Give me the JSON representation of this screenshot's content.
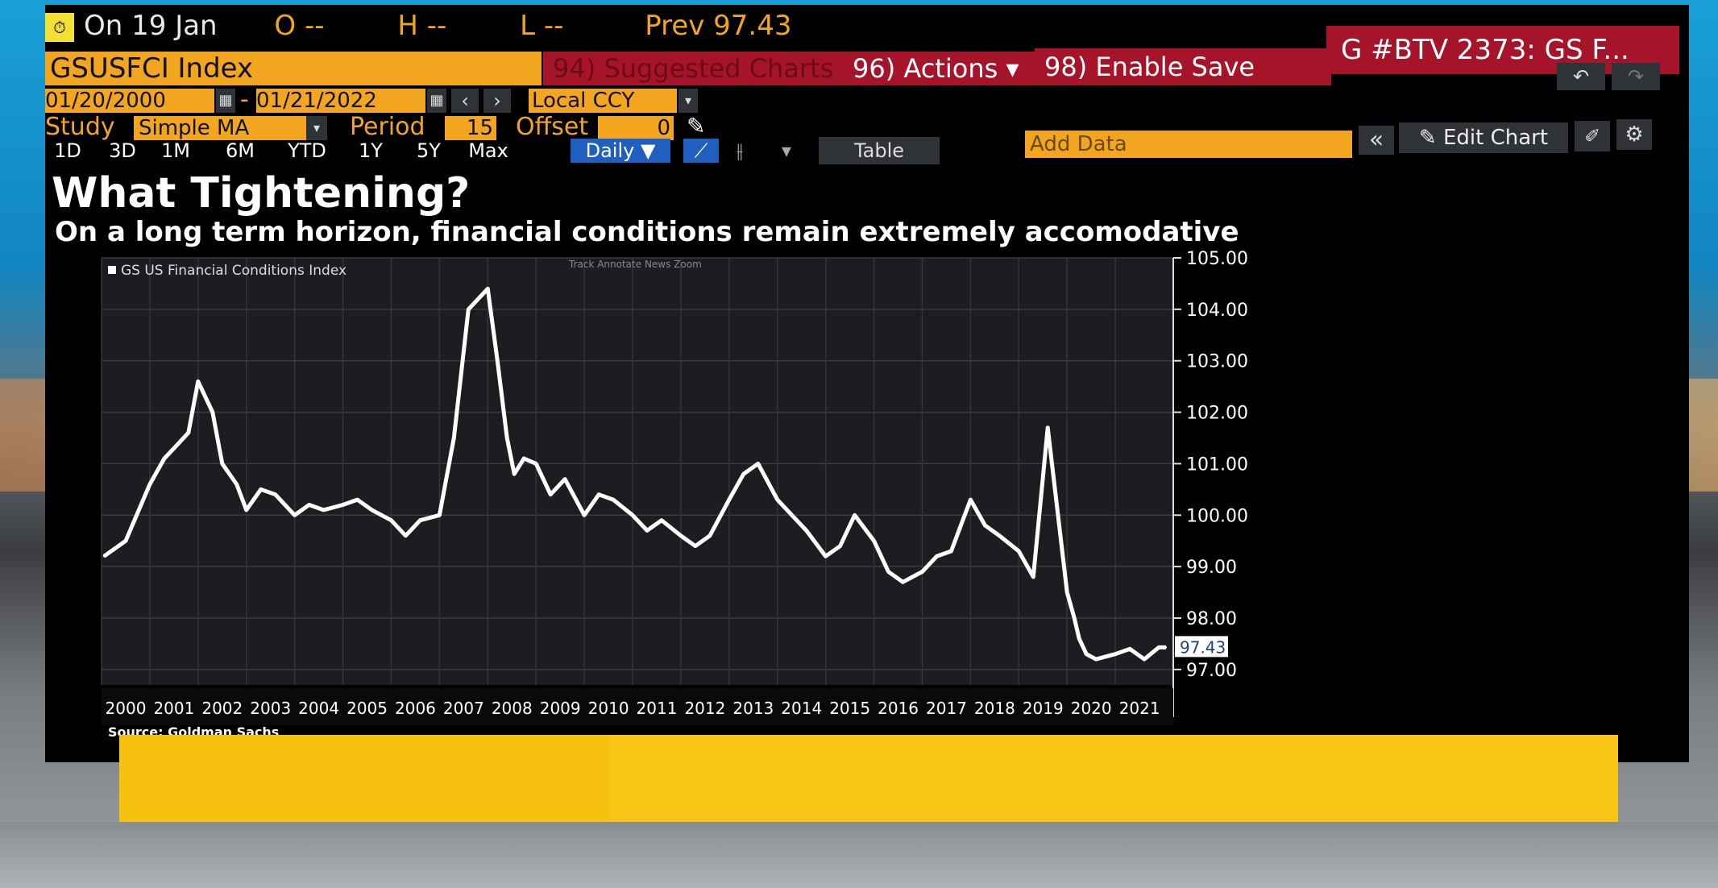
{
  "header": {
    "date_label": "On 19 Jan",
    "open": "O --",
    "high": "H --",
    "low": "L --",
    "prev": "Prev 97.43"
  },
  "security": {
    "ticker": "GSUSFCI Index",
    "suggested": "94) Suggested Charts",
    "actions": "96) Actions ▾",
    "enable_save": "98) Enable Save",
    "btv": "G #BTV 2373: GS F..."
  },
  "dates": {
    "start": "01/20/2000",
    "end": "01/21/2022",
    "currency": "Local CCY"
  },
  "study": {
    "label": "Study",
    "value": "Simple MA",
    "period_label": "Period",
    "period": "15",
    "offset_label": "Offset",
    "offset": "0"
  },
  "ranges": [
    "1D",
    "3D",
    "1M",
    "6M",
    "YTD",
    "1Y",
    "5Y",
    "Max"
  ],
  "frequency": "Daily ▼",
  "toolbar": {
    "table": "Table",
    "add_data": "Add Data",
    "edit_chart": "Edit Chart",
    "chevrons": "«"
  },
  "chart_title": "What Tightening?",
  "chart_subtitle": "On a long term horizon, financial conditions remain extremely accomodative",
  "chart_tools": "Track  Annotate  News  Zoom",
  "source": "Source: Goldman Sachs",
  "colors": {
    "accent": "#f2a51f",
    "red": "#a6142a",
    "blue": "#1f5fbf",
    "line": "#ffffff"
  },
  "chart_data": {
    "type": "line",
    "series": [
      {
        "name": "GS US Financial Conditions Index",
        "x": [
          2000.05,
          2000.5,
          2001.0,
          2001.3,
          2001.5,
          2001.8,
          2002.0,
          2002.3,
          2002.5,
          2002.8,
          2003.0,
          2003.3,
          2003.6,
          2004.0,
          2004.3,
          2004.6,
          2005.0,
          2005.3,
          2005.6,
          2006.0,
          2006.3,
          2006.6,
          2007.0,
          2007.3,
          2007.6,
          2008.0,
          2008.2,
          2008.4,
          2008.55,
          2008.75,
          2009.0,
          2009.3,
          2009.6,
          2010.0,
          2010.3,
          2010.6,
          2011.0,
          2011.3,
          2011.6,
          2012.0,
          2012.3,
          2012.6,
          2013.0,
          2013.3,
          2013.6,
          2014.0,
          2014.3,
          2014.6,
          2015.0,
          2015.3,
          2015.6,
          2016.0,
          2016.3,
          2016.6,
          2017.0,
          2017.3,
          2017.6,
          2018.0,
          2018.3,
          2018.6,
          2019.0,
          2019.3,
          2019.6,
          2020.0,
          2020.15,
          2020.25,
          2020.4,
          2020.6,
          2021.0,
          2021.3,
          2021.6,
          2021.9,
          2022.05
        ],
        "values": [
          99.2,
          99.5,
          100.6,
          101.1,
          101.3,
          101.6,
          102.6,
          102.0,
          101.0,
          100.6,
          100.1,
          100.5,
          100.4,
          100.0,
          100.2,
          100.1,
          100.2,
          100.3,
          100.1,
          99.9,
          99.6,
          99.9,
          100.0,
          101.5,
          104.0,
          104.4,
          103.0,
          101.5,
          100.8,
          101.1,
          101.0,
          100.4,
          100.7,
          100.0,
          100.4,
          100.3,
          100.0,
          99.7,
          99.9,
          99.6,
          99.4,
          99.6,
          100.3,
          100.8,
          101.0,
          100.3,
          100.0,
          99.7,
          99.2,
          99.4,
          100.0,
          99.5,
          98.9,
          98.7,
          98.9,
          99.2,
          99.3,
          100.3,
          99.8,
          99.6,
          99.3,
          98.8,
          101.7,
          98.5,
          98.0,
          97.6,
          97.3,
          97.2,
          97.3,
          97.4,
          97.2,
          97.43,
          97.43
        ]
      }
    ],
    "xlabels": [
      "2000",
      "2001",
      "2002",
      "2003",
      "2004",
      "2005",
      "2006",
      "2007",
      "2008",
      "2009",
      "2010",
      "2011",
      "2012",
      "2013",
      "2014",
      "2015",
      "2016",
      "2017",
      "2018",
      "2019",
      "2020",
      "2021"
    ],
    "ylabels": [
      "105.00",
      "104.00",
      "103.00",
      "102.00",
      "101.00",
      "100.00",
      "99.00",
      "98.00",
      "97.00"
    ],
    "last_value_label": "97.43",
    "ylim": [
      96.7,
      105.0
    ],
    "xlim": [
      2000.0,
      2022.2
    ],
    "grid": true,
    "legend": "top-left"
  }
}
